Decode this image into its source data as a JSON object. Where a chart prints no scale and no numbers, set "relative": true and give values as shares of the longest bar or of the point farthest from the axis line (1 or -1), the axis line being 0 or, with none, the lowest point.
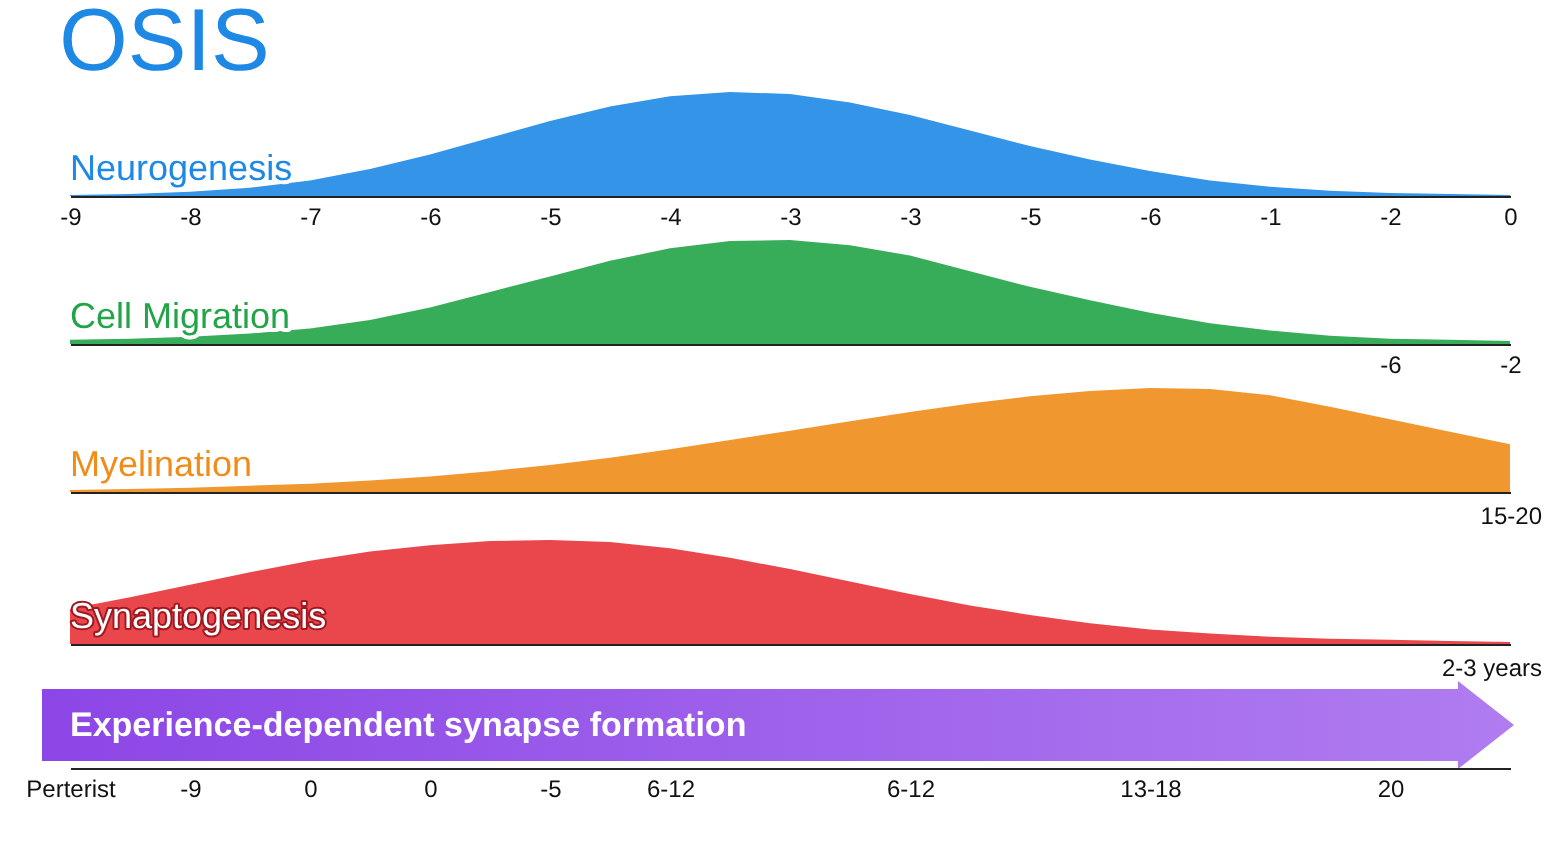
{
  "chart_data": [
    {
      "type": "area",
      "title": "OSIS",
      "relative": true,
      "categories": [
        "-9",
        null,
        "-8",
        null,
        "-7",
        null,
        "-6",
        null,
        "-5",
        null,
        "-4",
        null,
        "-3",
        null,
        "-3",
        null,
        "-5",
        null,
        "-6",
        null,
        "-1",
        null,
        "-2",
        null,
        "0"
      ],
      "series": [
        {
          "name": "Neurogenesis",
          "color": "#1e88e5",
          "values": [
            0.01,
            0.02,
            0.04,
            0.08,
            0.15,
            0.26,
            0.4,
            0.56,
            0.72,
            0.86,
            0.96,
            1,
            0.98,
            0.9,
            0.78,
            0.63,
            0.48,
            0.35,
            0.24,
            0.15,
            0.09,
            0.05,
            0.03,
            0.02,
            0.01
          ]
        }
      ]
    },
    {
      "type": "area",
      "relative": true,
      "categories": [
        null,
        null,
        null,
        null,
        null,
        null,
        null,
        null,
        null,
        null,
        null,
        null,
        null,
        null,
        null,
        null,
        null,
        null,
        null,
        null,
        null,
        null,
        "-6",
        null,
        "-2"
      ],
      "series": [
        {
          "name": "Cell Migration",
          "color": "#22a447",
          "values": [
            0.04,
            0.05,
            0.07,
            0.1,
            0.15,
            0.23,
            0.35,
            0.5,
            0.65,
            0.8,
            0.92,
            0.99,
            1,
            0.95,
            0.85,
            0.7,
            0.55,
            0.42,
            0.3,
            0.2,
            0.13,
            0.08,
            0.05,
            0.04,
            0.03
          ]
        }
      ]
    },
    {
      "type": "area",
      "relative": true,
      "categories": [
        null,
        null,
        null,
        null,
        null,
        null,
        null,
        null,
        null,
        null,
        null,
        null,
        null,
        null,
        null,
        null,
        null,
        null,
        null,
        null,
        null,
        null,
        null,
        null,
        null
      ],
      "annotations": [
        "15-20"
      ],
      "series": [
        {
          "name": "Myelination",
          "color": "#f08c1a",
          "values": [
            0.02,
            0.03,
            0.04,
            0.06,
            0.08,
            0.11,
            0.15,
            0.2,
            0.26,
            0.33,
            0.41,
            0.5,
            0.59,
            0.68,
            0.77,
            0.85,
            0.92,
            0.97,
            1,
            0.99,
            0.93,
            0.82,
            0.7,
            0.58,
            0.46
          ]
        }
      ]
    },
    {
      "type": "area",
      "relative": true,
      "categories": [
        null,
        null,
        null,
        null,
        null,
        null,
        null,
        null,
        null,
        null,
        null,
        null,
        null,
        null,
        null,
        null,
        null,
        null,
        null,
        null,
        null,
        null,
        null,
        null,
        null
      ],
      "annotations": [
        "2-3 years"
      ],
      "series": [
        {
          "name": "Synaptogenesis",
          "color": "#e8333a",
          "values": [
            0.34,
            0.45,
            0.57,
            0.69,
            0.8,
            0.89,
            0.95,
            0.99,
            1,
            0.98,
            0.92,
            0.83,
            0.72,
            0.6,
            0.48,
            0.37,
            0.28,
            0.2,
            0.14,
            0.1,
            0.07,
            0.05,
            0.04,
            0.03,
            0.02
          ]
        }
      ]
    },
    {
      "type": "other",
      "categories": [
        "Perterist",
        null,
        "-9",
        null,
        "0",
        null,
        "0",
        null,
        "-5",
        null,
        "6-12",
        null,
        null,
        null,
        "6-12",
        null,
        null,
        null,
        "13-18",
        null,
        null,
        null,
        "20",
        null,
        null
      ],
      "annotations": [
        "Experience-dependent synapse formation"
      ]
    }
  ]
}
